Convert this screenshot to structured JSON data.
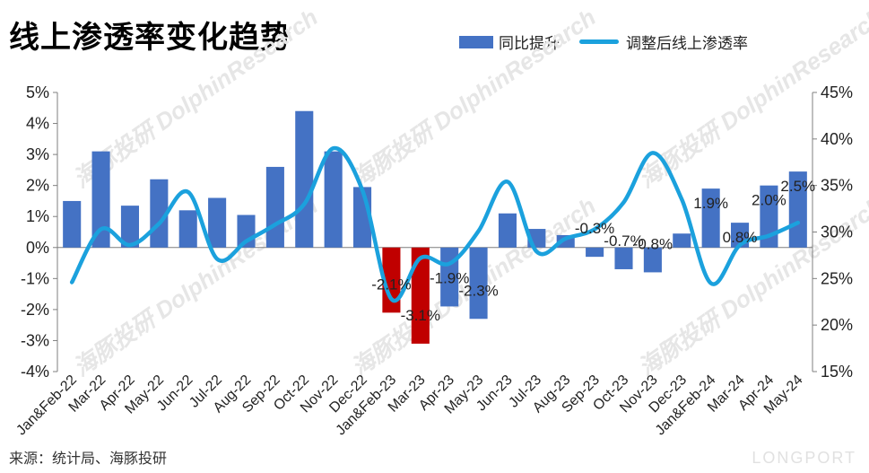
{
  "title": "线上渗透率变化趋势",
  "source": "来源：统计局、海豚投研",
  "watermark_brand": "LONGPORT",
  "watermark_text": "海豚投研 DolphinResearch",
  "colors": {
    "bar_pos": "#4472C4",
    "bar_neg": "#C00000",
    "line": "#1BA1DD"
  },
  "chart_data": {
    "type": "bar",
    "categories": [
      "Jan&Feb-22",
      "Mar-22",
      "Apr-22",
      "May-22",
      "Jun-22",
      "Jul-22",
      "Aug-22",
      "Sep-22",
      "Oct-22",
      "Nov-22",
      "Dec-22",
      "Jan&Feb-23",
      "Mar-23",
      "Apr-23",
      "May-23",
      "Jun-23",
      "Jul-23",
      "Aug-23",
      "Sep-23",
      "Oct-23",
      "Nov-23",
      "Dec-23",
      "Jan&Feb-24",
      "Mar-24",
      "Apr-24",
      "May-24"
    ],
    "series": [
      {
        "name": "同比提升",
        "type": "bar",
        "axis": "left",
        "values": [
          1.5,
          3.1,
          1.35,
          2.2,
          1.2,
          1.6,
          1.05,
          2.6,
          4.4,
          3.1,
          1.95,
          -2.1,
          -3.1,
          -1.9,
          -2.3,
          1.1,
          0.6,
          0.4,
          -0.3,
          -0.7,
          -0.8,
          0.45,
          1.9,
          0.8,
          2.0,
          2.45
        ],
        "negative_highlight_indices": [
          11,
          12
        ]
      },
      {
        "name": "调整后线上渗透率",
        "type": "line",
        "axis": "right",
        "values": [
          24.6,
          30.3,
          28.6,
          30.9,
          34.3,
          27.1,
          29.0,
          30.8,
          33.0,
          39.0,
          34.5,
          22.8,
          27.2,
          26.6,
          30.1,
          35.4,
          27.9,
          29.3,
          30.3,
          33.2,
          38.5,
          33.5,
          24.5,
          28.6,
          29.6,
          31.0
        ]
      }
    ],
    "data_labels": [
      {
        "index": 11,
        "text": "-2.1%"
      },
      {
        "index": 12,
        "text": "-3.1%"
      },
      {
        "index": 13,
        "text": "-1.9%"
      },
      {
        "index": 14,
        "text": "-2.3%"
      },
      {
        "index": 18,
        "text": "-0.3%"
      },
      {
        "index": 19,
        "text": "-0.7%"
      },
      {
        "index": 20,
        "text": "-0.8%"
      },
      {
        "index": 22,
        "text": "1.9%"
      },
      {
        "index": 23,
        "text": "0.8%"
      },
      {
        "index": 24,
        "text": "2.0%"
      },
      {
        "index": 25,
        "text": "2.5%"
      }
    ],
    "y_left": {
      "min": -4,
      "max": 5,
      "step": 1,
      "format": "percent"
    },
    "y_right": {
      "min": 15,
      "max": 45,
      "step": 5,
      "format": "percent"
    },
    "legend_position": "top-right",
    "grid": false
  }
}
